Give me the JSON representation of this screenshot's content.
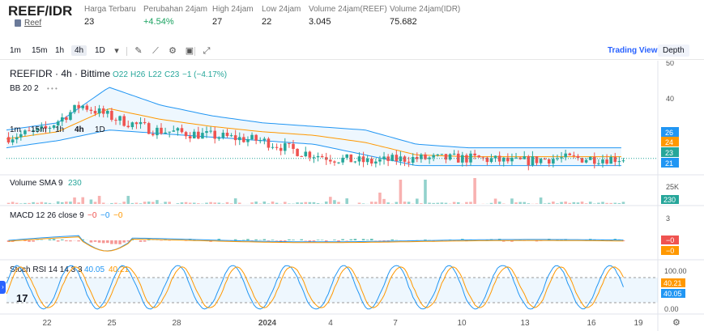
{
  "header": {
    "pair": "REEF/IDR",
    "sub_label": "Reef",
    "stats": [
      {
        "label": "Harga Terbaru",
        "value": "23",
        "up": false
      },
      {
        "label": "Perubahan 24jam",
        "value": "+4.54%",
        "up": true
      },
      {
        "label": "High 24jam",
        "value": "27",
        "up": false
      },
      {
        "label": "Low 24jam",
        "value": "22",
        "up": false
      },
      {
        "label": "Volume 24jam(REEF)",
        "value": "3.045",
        "up": false
      },
      {
        "label": "Volume 24jam(IDR)",
        "value": "75.682",
        "up": false
      }
    ]
  },
  "toolbar": {
    "timeframes": [
      "1m",
      "15m",
      "1h",
      "4h",
      "1D"
    ],
    "active_timeframe": "4h",
    "views": [
      "Trading View",
      "Depth"
    ],
    "active_view": "Trading View"
  },
  "main_pane": {
    "symbol": "REEFIDR · 4h · Bittime",
    "ohlc_o": "O22",
    "ohlc_h": "H26",
    "ohlc_l": "L22",
    "ohlc_c": "C23",
    "ohlc_change": "−1 (−4.17%)",
    "bb_label": "BB 20 2",
    "intervals": [
      "1m",
      "15m",
      "1h",
      "4h",
      "1D"
    ],
    "active_interval": "4h",
    "price_ticks": [
      "50",
      "40",
      "30"
    ],
    "price_badges": [
      {
        "value": "26",
        "color": "#2196f3"
      },
      {
        "value": "24",
        "color": "#ff9800"
      },
      {
        "value": "23",
        "color": "#26a69a"
      },
      {
        "value": "21",
        "color": "#2196f3"
      }
    ]
  },
  "volume_pane": {
    "label": "Volume SMA 9",
    "value": "230",
    "ticks": [
      "25K"
    ],
    "badge": "230"
  },
  "macd_pane": {
    "label": "MACD 12 26 close 9",
    "v1": "−0",
    "v2": "−0",
    "v3": "−0",
    "ticks": [
      "3"
    ],
    "badges": [
      "−0",
      "−0"
    ]
  },
  "stoch_pane": {
    "label": "Stoch RSI 14 14 3 3",
    "k": "40.05",
    "d": "40.21",
    "ticks": [
      "100.00",
      "0.00"
    ],
    "badges": [
      "40.21",
      "40.05"
    ]
  },
  "time_axis": [
    "22",
    "25",
    "28",
    "2024",
    "4",
    "7",
    "10",
    "13",
    "16",
    "19"
  ],
  "colors": {
    "up": "#26a69a",
    "down": "#ef5350",
    "bb": "#2196f3",
    "ma": "#ff9800",
    "accent": "#2962ff"
  },
  "chart_data": {
    "type": "candlestick",
    "price_range": [
      20,
      50
    ],
    "x": [
      "22",
      "25",
      "28",
      "2024",
      "4",
      "7",
      "10",
      "13",
      "16",
      "19"
    ],
    "close_trend": [
      29,
      31,
      38,
      34,
      31,
      30,
      29,
      28,
      25,
      23,
      22,
      23,
      23,
      23,
      22,
      23,
      23,
      23
    ],
    "bb_upper_trend": [
      31,
      33,
      43,
      38,
      35,
      33,
      32,
      31,
      27,
      26,
      26,
      26,
      26
    ],
    "bb_lower_trend": [
      26,
      28,
      31,
      30,
      29,
      28,
      27,
      24,
      21,
      21,
      21,
      21,
      21
    ],
    "stoch_k": 40.05,
    "stoch_d": 40.21,
    "volume_sma": 230
  }
}
